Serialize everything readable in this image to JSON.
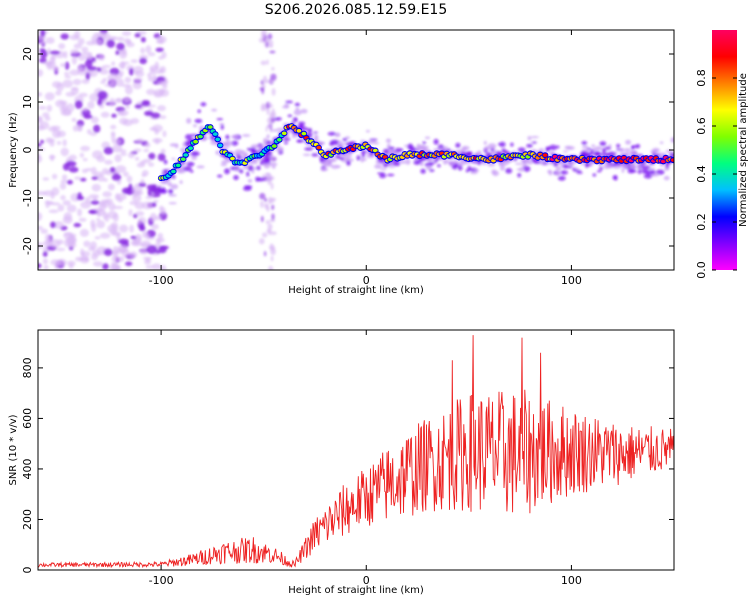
{
  "title": "S206.2026.085.12.59.E15",
  "chart_data": [
    {
      "type": "heatmap",
      "xlabel": "Height of straight line (km)",
      "ylabel": "Frequency (Hz)",
      "xlim": [
        -160,
        150
      ],
      "ylim": [
        -25,
        25
      ],
      "xticks": [
        -100,
        0,
        100
      ],
      "yticks": [
        -20,
        -10,
        0,
        10,
        20
      ],
      "colorbar": {
        "label": "Normalized spectral amplitude",
        "range": [
          0,
          1
        ],
        "ticks": [
          0.0,
          0.2,
          0.4,
          0.6,
          0.8
        ],
        "stops": [
          "#ff00ff",
          "#8000ff",
          "#0000ff",
          "#00c0ff",
          "#00ff80",
          "#80ff00",
          "#ffff00",
          "#ff8000",
          "#ff0000",
          "#ff0060"
        ]
      },
      "ridge": [
        {
          "x": -97,
          "y": -6
        },
        {
          "x": -90,
          "y": -2
        },
        {
          "x": -83,
          "y": 2
        },
        {
          "x": -76,
          "y": 5
        },
        {
          "x": -70,
          "y": 0
        },
        {
          "x": -62,
          "y": -3
        },
        {
          "x": -52,
          "y": -1
        },
        {
          "x": -45,
          "y": 1
        },
        {
          "x": -38,
          "y": 5
        },
        {
          "x": -30,
          "y": 3
        },
        {
          "x": -20,
          "y": -1
        },
        {
          "x": -10,
          "y": 0
        },
        {
          "x": 0,
          "y": 1
        },
        {
          "x": 10,
          "y": -2
        },
        {
          "x": 20,
          "y": -1
        },
        {
          "x": 40,
          "y": -1
        },
        {
          "x": 60,
          "y": -2
        },
        {
          "x": 80,
          "y": -1
        },
        {
          "x": 95,
          "y": -2
        },
        {
          "x": 120,
          "y": -2
        },
        {
          "x": 150,
          "y": -2
        }
      ]
    },
    {
      "type": "line",
      "xlabel": "Height of straight line (km)",
      "ylabel": "SNR (10 * v/v)",
      "xlim": [
        -160,
        150
      ],
      "ylim": [
        0,
        950
      ],
      "xticks": [
        -100,
        0,
        100
      ],
      "yticks": [
        0,
        200,
        400,
        600,
        800
      ],
      "color": "#ee2222",
      "envelope": [
        {
          "x": -160,
          "mean": 20,
          "amp": 8
        },
        {
          "x": -100,
          "mean": 22,
          "amp": 10
        },
        {
          "x": -85,
          "mean": 40,
          "amp": 25
        },
        {
          "x": -70,
          "mean": 70,
          "amp": 45
        },
        {
          "x": -55,
          "mean": 80,
          "amp": 55
        },
        {
          "x": -45,
          "mean": 60,
          "amp": 35
        },
        {
          "x": -35,
          "mean": 20,
          "amp": 12
        },
        {
          "x": -25,
          "mean": 140,
          "amp": 70
        },
        {
          "x": -10,
          "mean": 240,
          "amp": 110
        },
        {
          "x": 0,
          "mean": 290,
          "amp": 120
        },
        {
          "x": 15,
          "mean": 360,
          "amp": 170
        },
        {
          "x": 30,
          "mean": 420,
          "amp": 190
        },
        {
          "x": 50,
          "mean": 470,
          "amp": 240
        },
        {
          "x": 75,
          "mean": 460,
          "amp": 260
        },
        {
          "x": 100,
          "mean": 470,
          "amp": 180
        },
        {
          "x": 125,
          "mean": 460,
          "amp": 120
        },
        {
          "x": 150,
          "mean": 480,
          "amp": 80
        }
      ],
      "peaks": [
        {
          "x": 52,
          "y": 930
        },
        {
          "x": 76,
          "y": 920
        },
        {
          "x": 85,
          "y": 860
        },
        {
          "x": 42,
          "y": 830
        }
      ]
    }
  ]
}
